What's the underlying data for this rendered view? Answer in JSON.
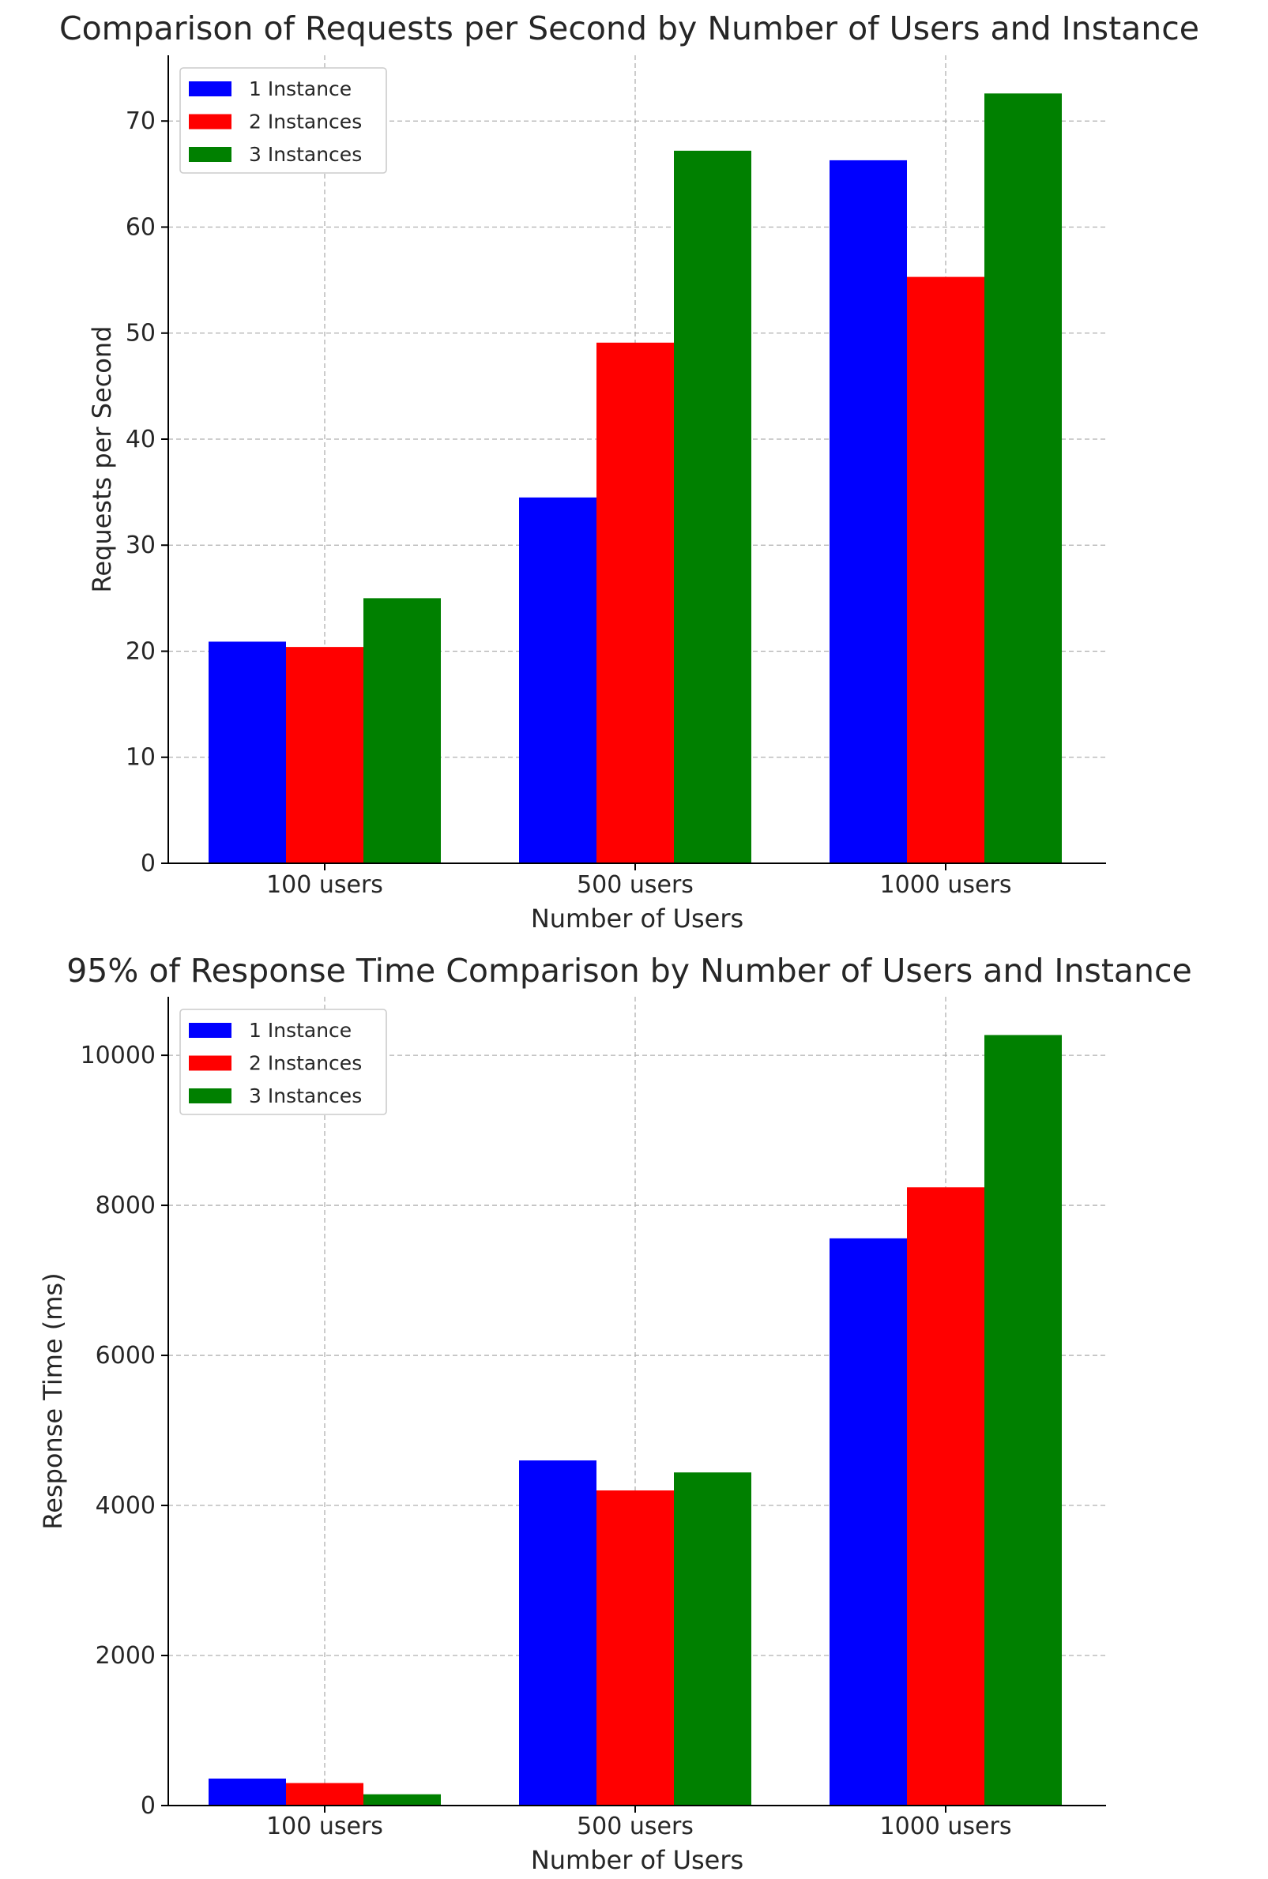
{
  "chart_data": [
    {
      "type": "bar",
      "title": "Comparison of Requests per Second by Number of Users and Instance",
      "xlabel": "Number of Users",
      "ylabel": "Requests per Second",
      "categories": [
        "100 users",
        "500 users",
        "1000 users"
      ],
      "series": [
        {
          "name": "1 Instance",
          "color": "#0000ff",
          "values": [
            20.9,
            34.5,
            66.3
          ]
        },
        {
          "name": "2 Instances",
          "color": "#ff0000",
          "values": [
            20.4,
            49.1,
            55.3
          ]
        },
        {
          "name": "3 Instances",
          "color": "#008000",
          "values": [
            25.0,
            67.2,
            72.6
          ]
        }
      ],
      "ylim": [
        0,
        76.2
      ],
      "yticks": [
        0,
        10,
        20,
        30,
        40,
        50,
        60,
        70
      ],
      "grid": true,
      "legend": "top-left"
    },
    {
      "type": "bar",
      "title": "95% of Response Time Comparison by Number of Users and Instance",
      "xlabel": "Number of Users",
      "ylabel": "Response Time (ms)",
      "categories": [
        "100 users",
        "500 users",
        "1000 users"
      ],
      "series": [
        {
          "name": "1 Instance",
          "color": "#0000ff",
          "values": [
            360,
            4600,
            7560
          ]
        },
        {
          "name": "2 Instances",
          "color": "#ff0000",
          "values": [
            300,
            4200,
            8240
          ]
        },
        {
          "name": "3 Instances",
          "color": "#008000",
          "values": [
            150,
            4440,
            10270
          ]
        }
      ],
      "ylim": [
        0,
        10780
      ],
      "yticks": [
        0,
        2000,
        4000,
        6000,
        8000,
        10000
      ],
      "grid": true,
      "legend": "top-left"
    }
  ]
}
